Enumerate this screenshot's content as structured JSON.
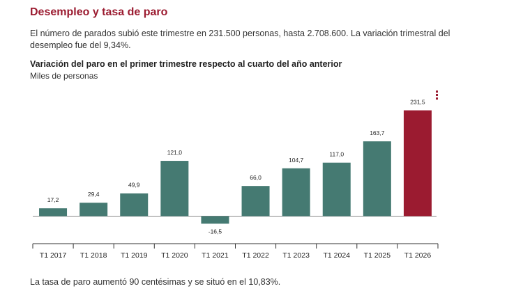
{
  "header": {
    "title": "Desempleo y tasa de paro",
    "intro": "El número de parados subió este trimestre en 231.500 personas, hasta 2.708.600. La variación trimestral del desempleo fue del 9,34%."
  },
  "footer": {
    "text": "La tasa de paro aumentó 90 centésimas y se situó en el 10,83%."
  },
  "colors": {
    "bar": "#457a72",
    "highlight": "#9b1b30",
    "axis": "#333333"
  },
  "chart_data": {
    "type": "bar",
    "title": "Variación del paro en el primer trimestre respecto al cuarto del año anterior",
    "subtitle": "Miles de personas",
    "categories": [
      "T1 2017",
      "T1 2018",
      "T1 2019",
      "T1 2020",
      "T1 2021",
      "T1 2022",
      "T1 2023",
      "T1 2024",
      "T1 2025",
      "T1 2026"
    ],
    "values": [
      17.2,
      29.4,
      49.9,
      121.0,
      -16.5,
      66.0,
      104.7,
      117.0,
      163.7,
      231.5
    ],
    "labels": [
      "17,2",
      "29,4",
      "49,9",
      "121,0",
      "-16,5",
      "66,0",
      "104,7",
      "117,0",
      "163,7",
      "231,5"
    ],
    "highlight_index": 9,
    "ylim": [
      -40,
      260
    ],
    "xlabel": "",
    "ylabel": "Miles de personas",
    "grid": false
  }
}
